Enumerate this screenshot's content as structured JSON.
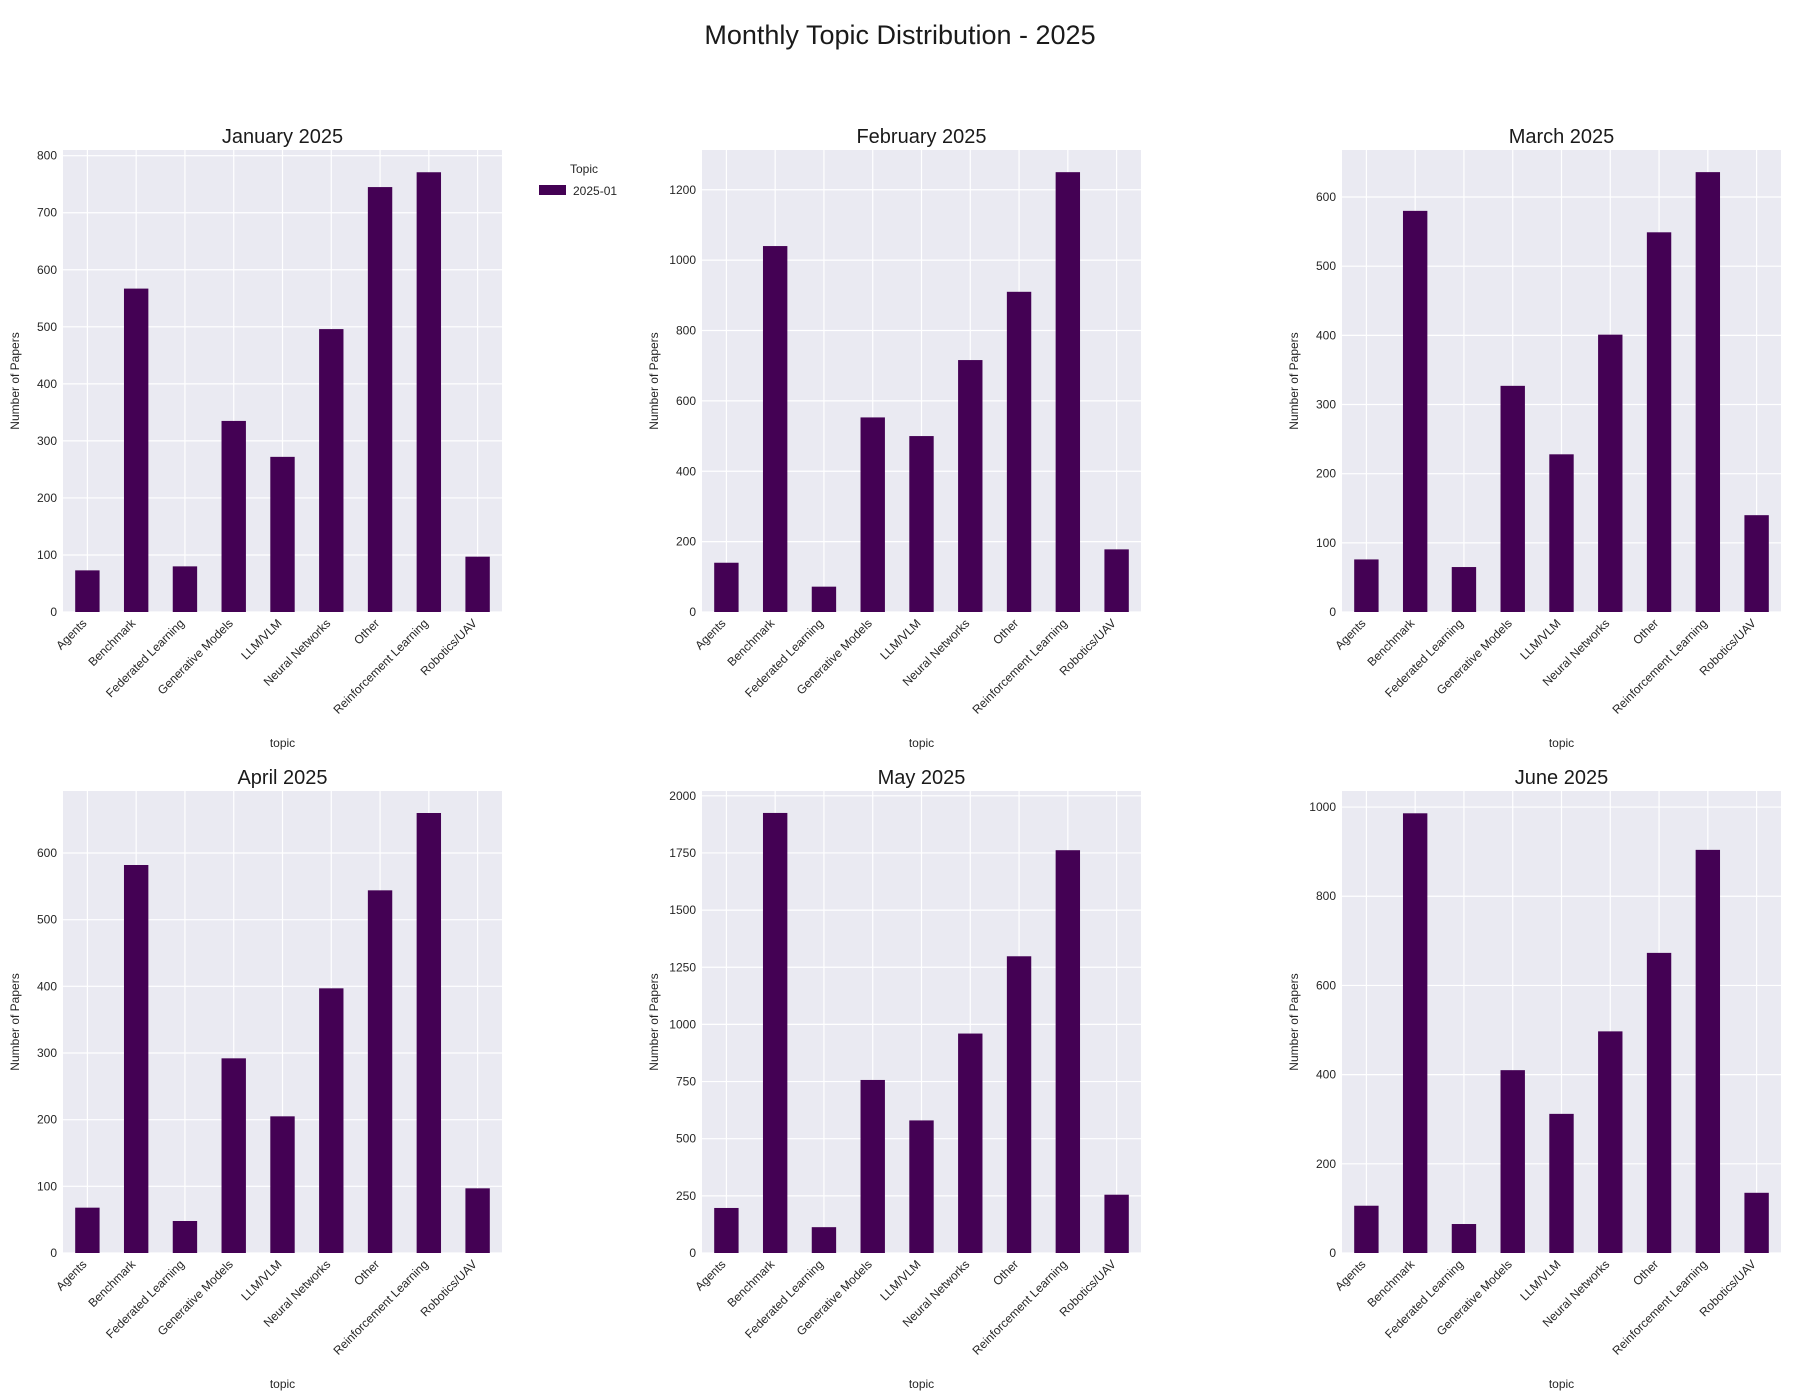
{
  "figure": {
    "title": "Monthly Topic Distribution - 2025",
    "bar_color": "#440154",
    "plot_background": "#eaeaf2",
    "grid_color": "#ffffff"
  },
  "chart_data": [
    {
      "type": "bar",
      "title": "January 2025",
      "xlabel": "topic",
      "ylabel": "Number of Papers",
      "categories": [
        "Agents",
        "Benchmark",
        "Federated Learning",
        "Generative Models",
        "LLM/VLM",
        "Neural Networks",
        "Other",
        "Reinforcement Learning",
        "Robotics/UAV"
      ],
      "series": [
        {
          "name": "2025-01",
          "values": [
            73,
            567,
            80,
            335,
            272,
            496,
            745,
            771,
            97
          ]
        }
      ],
      "ylim": [
        0,
        810
      ],
      "yticks": [
        0,
        100,
        200,
        300,
        400,
        500,
        600,
        700,
        800
      ],
      "grid": true,
      "legend": {
        "title": "Topic",
        "entries": [
          "2025-01"
        ],
        "placement": "outside-right"
      }
    },
    {
      "type": "bar",
      "title": "February 2025",
      "xlabel": "topic",
      "ylabel": "Number of Papers",
      "categories": [
        "Agents",
        "Benchmark",
        "Federated Learning",
        "Generative Models",
        "LLM/VLM",
        "Neural Networks",
        "Other",
        "Reinforcement Learning",
        "Robotics/UAV"
      ],
      "series": [
        {
          "values": [
            140,
            1040,
            72,
            553,
            500,
            716,
            910,
            1250,
            178
          ]
        }
      ],
      "ylim": [
        0,
        1313
      ],
      "yticks": [
        0,
        200,
        400,
        600,
        800,
        1000,
        1200
      ],
      "grid": true
    },
    {
      "type": "bar",
      "title": "March 2025",
      "xlabel": "topic",
      "ylabel": "Number of Papers",
      "categories": [
        "Agents",
        "Benchmark",
        "Federated Learning",
        "Generative Models",
        "LLM/VLM",
        "Neural Networks",
        "Other",
        "Reinforcement Learning",
        "Robotics/UAV"
      ],
      "series": [
        {
          "values": [
            76,
            580,
            65,
            327,
            228,
            401,
            549,
            636,
            140
          ]
        }
      ],
      "ylim": [
        0,
        668
      ],
      "yticks": [
        0,
        100,
        200,
        300,
        400,
        500,
        600
      ],
      "grid": true
    },
    {
      "type": "bar",
      "title": "April 2025",
      "xlabel": "topic",
      "ylabel": "Number of Papers",
      "categories": [
        "Agents",
        "Benchmark",
        "Federated Learning",
        "Generative Models",
        "LLM/VLM",
        "Neural Networks",
        "Other",
        "Reinforcement Learning",
        "Robotics/UAV"
      ],
      "series": [
        {
          "values": [
            68,
            582,
            48,
            292,
            205,
            397,
            544,
            660,
            97
          ]
        }
      ],
      "ylim": [
        0,
        693
      ],
      "yticks": [
        0,
        100,
        200,
        300,
        400,
        500,
        600
      ],
      "grid": true
    },
    {
      "type": "bar",
      "title": "May 2025",
      "xlabel": "topic",
      "ylabel": "Number of Papers",
      "categories": [
        "Agents",
        "Benchmark",
        "Federated Learning",
        "Generative Models",
        "LLM/VLM",
        "Neural Networks",
        "Other",
        "Reinforcement Learning",
        "Robotics/UAV"
      ],
      "series": [
        {
          "values": [
            197,
            1925,
            113,
            757,
            580,
            960,
            1298,
            1762,
            255
          ]
        }
      ],
      "ylim": [
        0,
        2021
      ],
      "yticks": [
        0,
        250,
        500,
        750,
        1000,
        1250,
        1500,
        1750,
        2000
      ],
      "grid": true
    },
    {
      "type": "bar",
      "title": "June 2025",
      "xlabel": "topic",
      "ylabel": "Number of Papers",
      "categories": [
        "Agents",
        "Benchmark",
        "Federated Learning",
        "Generative Models",
        "LLM/VLM",
        "Neural Networks",
        "Other",
        "Reinforcement Learning",
        "Robotics/UAV"
      ],
      "series": [
        {
          "values": [
            106,
            986,
            65,
            410,
            312,
            497,
            673,
            904,
            135
          ]
        }
      ],
      "ylim": [
        0,
        1036
      ],
      "yticks": [
        0,
        200,
        400,
        600,
        800,
        1000
      ],
      "grid": true
    }
  ]
}
